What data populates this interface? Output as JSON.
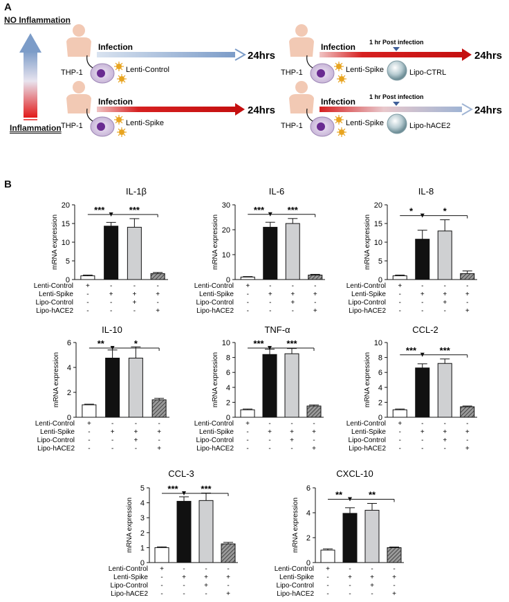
{
  "panel_a": {
    "letter": "A",
    "no_inflammation": "NO Inflammation",
    "inflammation": "Inflammation",
    "scenarios": [
      {
        "id": "s1",
        "infection": "Infection",
        "time": "24hrs",
        "cell": "THP-1",
        "virus": "Lenti-Control",
        "liposome": null,
        "note": null,
        "arrow": "blue"
      },
      {
        "id": "s2",
        "infection": "Infection",
        "time": "24hrs",
        "cell": "THP-1",
        "virus": "Lenti-Spike",
        "liposome": null,
        "note": null,
        "arrow": "red"
      },
      {
        "id": "s3",
        "infection": "Infection",
        "time": "24hrs",
        "cell": "THP-1",
        "virus": "Lenti-Spike",
        "liposome": "Lipo-CTRL",
        "note": "1 hr Post infection",
        "arrow": "red"
      },
      {
        "id": "s4",
        "infection": "Infection",
        "time": "24hrs",
        "cell": "THP-1",
        "virus": "Lenti-Spike",
        "liposome": "Lipo-hACE2",
        "note": "1 hr Post infection",
        "arrow": "red-blue"
      }
    ]
  },
  "panel_b": {
    "letter": "B"
  },
  "colors": {
    "red": "#d62020",
    "blue": "#7c9cc8",
    "bar_control": "#ffffff",
    "bar_spike": "#111111",
    "bar_lipo_ctrl": "#cfd0d2",
    "bar_hace2": "#7a7a7a"
  },
  "row_labels": [
    "Lenti-Control",
    "Lenti-Spike",
    "Lipo-Control",
    "Lipo-hACE2"
  ],
  "conditions": [
    [
      "+",
      "-",
      "-",
      "-"
    ],
    [
      "-",
      "+",
      "+",
      "+"
    ],
    [
      "-",
      "-",
      "+",
      "-"
    ],
    [
      "-",
      "-",
      "-",
      "+"
    ]
  ],
  "chart_data": [
    {
      "type": "bar",
      "title": "IL-1β",
      "ylabel": "mRNA expression",
      "ylim": [
        0,
        20
      ],
      "yticks": [
        0,
        5,
        10,
        15,
        20
      ],
      "categories": [
        "Lenti-Control",
        "Lenti-Spike",
        "Lenti-Spike + Lipo-Control",
        "Lenti-Spike + Lipo-hACE2"
      ],
      "values": [
        1.0,
        14.3,
        14.0,
        1.6
      ],
      "errors": [
        0.2,
        1.0,
        2.3,
        0.3
      ],
      "sig": [
        {
          "label": "***",
          "from": 0,
          "to": 1
        },
        {
          "label": "***",
          "from": 1,
          "to": 3
        }
      ]
    },
    {
      "type": "bar",
      "title": "IL-6",
      "ylabel": "mRNA expression",
      "ylim": [
        0,
        30
      ],
      "yticks": [
        0,
        10,
        20,
        30
      ],
      "categories": [
        "Lenti-Control",
        "Lenti-Spike",
        "Lenti-Spike + Lipo-Control",
        "Lenti-Spike + Lipo-hACE2"
      ],
      "values": [
        1.0,
        21.0,
        22.5,
        1.8
      ],
      "errors": [
        0.2,
        2.0,
        2.0,
        0.3
      ],
      "sig": [
        {
          "label": "***",
          "from": 0,
          "to": 1
        },
        {
          "label": "***",
          "from": 1,
          "to": 3
        }
      ]
    },
    {
      "type": "bar",
      "title": "IL-8",
      "ylabel": "mRNA expression",
      "ylim": [
        0,
        20
      ],
      "yticks": [
        0,
        5,
        10,
        15,
        20
      ],
      "categories": [
        "Lenti-Control",
        "Lenti-Spike",
        "Lenti-Spike + Lipo-Control",
        "Lenti-Spike + Lipo-hACE2"
      ],
      "values": [
        1.0,
        10.8,
        13.0,
        1.6
      ],
      "errors": [
        0.2,
        2.4,
        3.0,
        0.7
      ],
      "sig": [
        {
          "label": "*",
          "from": 0,
          "to": 1
        },
        {
          "label": "*",
          "from": 1,
          "to": 3
        }
      ]
    },
    {
      "type": "bar",
      "title": "IL-10",
      "ylabel": "mRNA expression",
      "ylim": [
        0,
        6
      ],
      "yticks": [
        0,
        2,
        4,
        6
      ],
      "categories": [
        "Lenti-Control",
        "Lenti-Spike",
        "Lenti-Spike + Lipo-Control",
        "Lenti-Spike + Lipo-hACE2"
      ],
      "values": [
        1.0,
        4.75,
        4.75,
        1.4
      ],
      "errors": [
        0.05,
        0.65,
        0.9,
        0.12
      ],
      "sig": [
        {
          "label": "**",
          "from": 0,
          "to": 1
        },
        {
          "label": "*",
          "from": 1,
          "to": 3
        }
      ]
    },
    {
      "type": "bar",
      "title": "TNF-α",
      "ylabel": "mRNA expression",
      "ylim": [
        0,
        10
      ],
      "yticks": [
        0,
        2,
        4,
        6,
        8,
        10
      ],
      "categories": [
        "Lenti-Control",
        "Lenti-Spike",
        "Lenti-Spike + Lipo-Control",
        "Lenti-Spike + Lipo-hACE2"
      ],
      "values": [
        1.0,
        8.4,
        8.5,
        1.5
      ],
      "errors": [
        0.1,
        0.7,
        0.7,
        0.15
      ],
      "sig": [
        {
          "label": "***",
          "from": 0,
          "to": 1
        },
        {
          "label": "***",
          "from": 1,
          "to": 3
        }
      ]
    },
    {
      "type": "bar",
      "title": "CCL-2",
      "ylabel": "mRNA expression",
      "ylim": [
        0,
        10
      ],
      "yticks": [
        0,
        2,
        4,
        6,
        8,
        10
      ],
      "categories": [
        "Lenti-Control",
        "Lenti-Spike",
        "Lenti-Spike + Lipo-Control",
        "Lenti-Spike + Lipo-hACE2"
      ],
      "values": [
        1.0,
        6.6,
        7.2,
        1.4
      ],
      "errors": [
        0.1,
        0.55,
        0.6,
        0.1
      ],
      "sig": [
        {
          "label": "***",
          "from": 0,
          "to": 1
        },
        {
          "label": "***",
          "from": 1,
          "to": 3
        }
      ]
    },
    {
      "type": "bar",
      "title": "CCL-3",
      "ylabel": "mRNA expression",
      "ylim": [
        0,
        5
      ],
      "yticks": [
        0,
        1,
        2,
        3,
        4,
        5
      ],
      "categories": [
        "Lenti-Control",
        "Lenti-Spike",
        "Lenti-Spike + Lipo-Control",
        "Lenti-Spike + Lipo-hACE2"
      ],
      "values": [
        1.0,
        4.1,
        4.15,
        1.25
      ],
      "errors": [
        0.05,
        0.3,
        0.5,
        0.1
      ],
      "sig": [
        {
          "label": "***",
          "from": 0,
          "to": 1
        },
        {
          "label": "***",
          "from": 1,
          "to": 3
        }
      ]
    },
    {
      "type": "bar",
      "title": "CXCL-10",
      "ylabel": "mRNA expression",
      "ylim": [
        0,
        6
      ],
      "yticks": [
        0,
        2,
        4,
        6
      ],
      "categories": [
        "Lenti-Control",
        "Lenti-Spike",
        "Lenti-Spike + Lipo-Control",
        "Lenti-Spike + Lipo-hACE2"
      ],
      "values": [
        1.0,
        3.95,
        4.2,
        1.2
      ],
      "errors": [
        0.1,
        0.45,
        0.55,
        0.05
      ],
      "sig": [
        {
          "label": "**",
          "from": 0,
          "to": 1
        },
        {
          "label": "**",
          "from": 1,
          "to": 3
        }
      ]
    }
  ]
}
